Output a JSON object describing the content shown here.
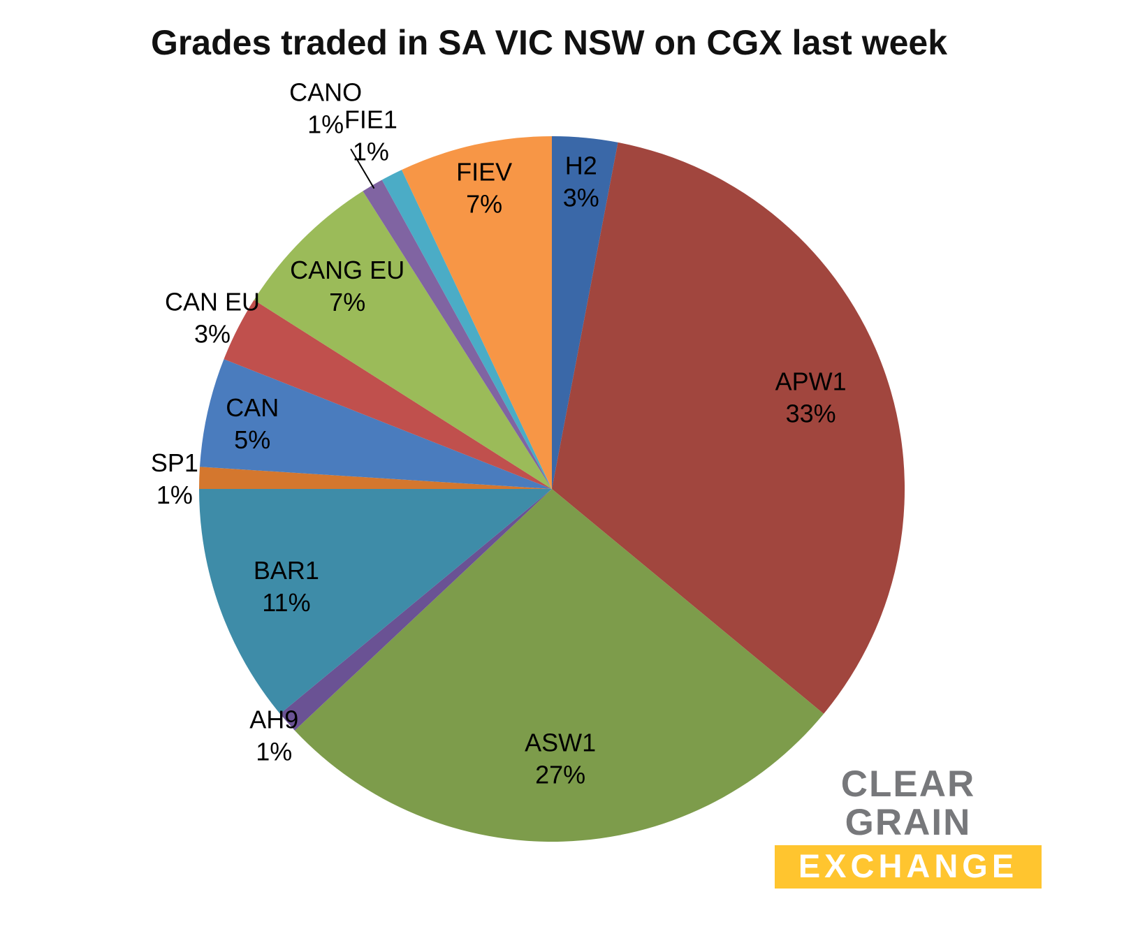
{
  "title": "Grades traded in SA VIC NSW on CGX last week",
  "chart_data": {
    "type": "pie",
    "title": "Grades traded in SA VIC NSW on CGX last week",
    "start_angle_deg": 0,
    "direction": "clockwise",
    "total": 100,
    "slices": [
      {
        "label": "H2",
        "value": 3,
        "percent_label": "3%",
        "color": "#3A68A8",
        "label_position": "inside",
        "label_r": 0.88
      },
      {
        "label": "APW1",
        "value": 33,
        "percent_label": "33%",
        "color": "#A1463E",
        "label_position": "inside",
        "label_r": 0.78
      },
      {
        "label": "ASW1",
        "value": 27,
        "percent_label": "27%",
        "color": "#7D9C4B",
        "label_position": "inside",
        "label_r": 0.76
      },
      {
        "label": "AH9",
        "value": 1,
        "percent_label": "1%",
        "color": "#6A5294",
        "label_position": "outside",
        "label_r": 1.05
      },
      {
        "label": "BAR1",
        "value": 11,
        "percent_label": "11%",
        "color": "#3E8CA8",
        "label_position": "inside",
        "label_r": 0.8
      },
      {
        "label": "SP1",
        "value": 1,
        "percent_label": "1%",
        "color": "#D4772E",
        "label_position": "outside",
        "label_r": 1.07
      },
      {
        "label": "CAN",
        "value": 5,
        "percent_label": "5%",
        "color": "#4A7CBE",
        "label_position": "inside",
        "label_r": 0.87
      },
      {
        "label": "CAN EU",
        "value": 3,
        "percent_label": "3%",
        "color": "#C0504D",
        "label_position": "outside",
        "label_r": 1.08
      },
      {
        "label": "CANG EU",
        "value": 7,
        "percent_label": "7%",
        "color": "#9BBB59",
        "label_position": "inside",
        "label_r": 0.82
      },
      {
        "label": "CANO",
        "value": 1,
        "percent_label": "1%",
        "color": "#8064A2",
        "label_position": "outside",
        "label_r": 1.26,
        "leader_line": true
      },
      {
        "label": "FIE1",
        "value": 1,
        "percent_label": "1%",
        "color": "#4BACC6",
        "label_position": "outside",
        "label_r": 1.13
      },
      {
        "label": "FIEV",
        "value": 7,
        "percent_label": "7%",
        "color": "#F79646",
        "label_position": "inside",
        "label_r": 0.88
      }
    ],
    "legend": "none",
    "label_text_color": "#000000"
  },
  "logo": {
    "line1": "CLEAR GRAIN",
    "line2": "EXCHANGE",
    "accent_color": "#FFC52F",
    "gray_color": "#77787B",
    "line2_text_color": "#FFFFFF"
  }
}
